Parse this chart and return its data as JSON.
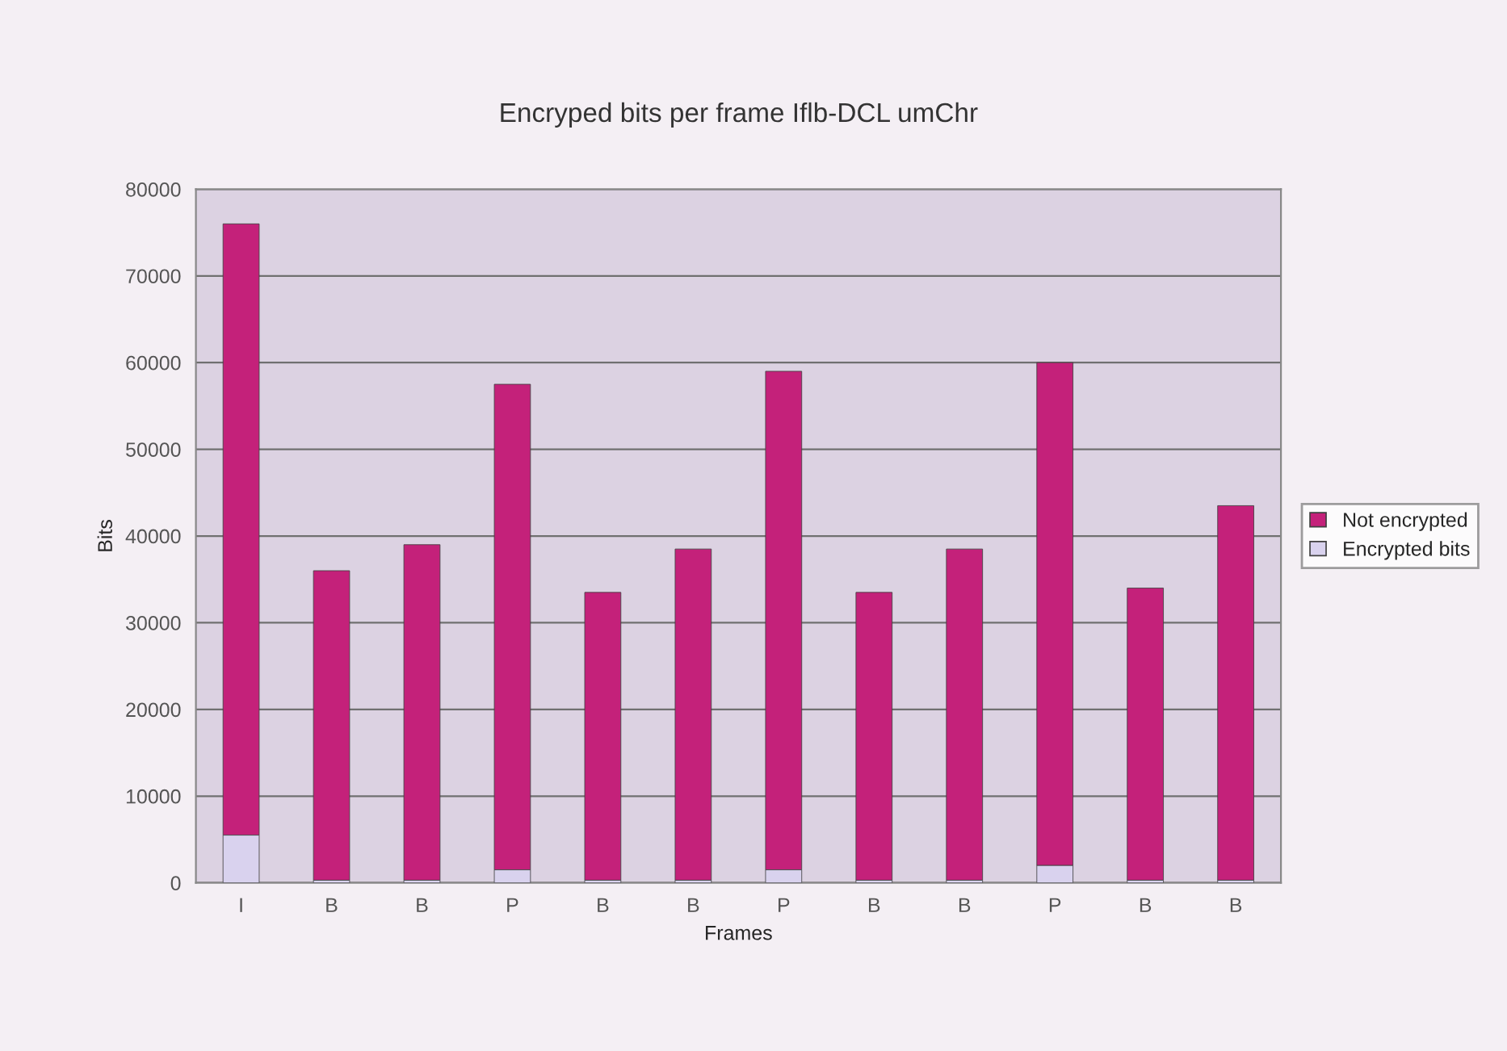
{
  "chart_data": {
    "type": "bar",
    "title": "Encryped bits per frame Iflb-DCL umChr",
    "xlabel": "Frames",
    "ylabel": "Bits",
    "categories": [
      "I",
      "B",
      "B",
      "P",
      "B",
      "B",
      "P",
      "B",
      "B",
      "P",
      "B",
      "B"
    ],
    "stacked": true,
    "series": [
      {
        "name": "Encrypted bits",
        "color": "#d9d2ee",
        "values": [
          5500,
          300,
          300,
          1500,
          300,
          300,
          1500,
          300,
          300,
          2000,
          300,
          300
        ]
      },
      {
        "name": "Not encrypted",
        "color": "#c4217a",
        "values": [
          70500,
          35700,
          38700,
          56000,
          33200,
          38200,
          57500,
          33200,
          38200,
          58000,
          33700,
          43200
        ]
      }
    ],
    "ylim": [
      0,
      80000
    ],
    "yticks": [
      0,
      10000,
      20000,
      30000,
      40000,
      50000,
      60000,
      70000,
      80000
    ],
    "grid": "y",
    "legend": "right"
  }
}
